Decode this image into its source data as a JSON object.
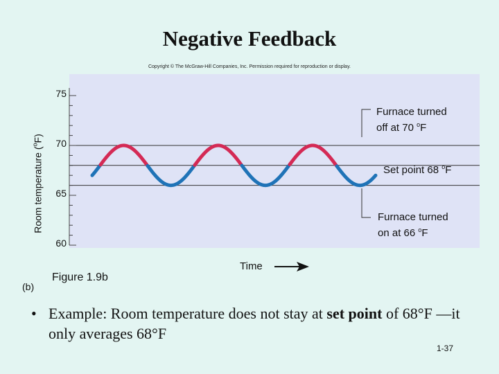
{
  "slide": {
    "title": "Negative Feedback",
    "copyright": "Copyright © The McGraw-Hill Companies, Inc. Permission required for reproduction or display.",
    "bullet_mark": "•",
    "bullet_pre": "Example: Room temperature does not stay at ",
    "bullet_bold": "set point",
    "bullet_post": " of 68°F —it only averages 68°F",
    "page_number": "1-37"
  },
  "chart_data": {
    "type": "line",
    "panel_label": "(b)",
    "figure_label": "Figure 1.9b",
    "ylabel_main": "Room temperature (",
    "ylabel_sup": "o",
    "ylabel_end": "F)",
    "xlabel": "Time",
    "ylim": [
      60,
      75
    ],
    "yticks": [
      "75",
      "70",
      "65",
      "60"
    ],
    "set_point": 68,
    "upper_limit": 70,
    "lower_limit": 66,
    "wave": {
      "mean": 68,
      "amplitude": 2,
      "peaks": 3,
      "troughs": 3,
      "heating_color": "#d42a55",
      "cooling_color": "#1f73b7"
    },
    "reference_lines": [
      {
        "label_line1": "Furnace turned",
        "label_line2": "off at 70 ",
        "sup": "o",
        "unit": "F",
        "value": 70
      },
      {
        "label_line1": "Set point 68 ",
        "sup": "o",
        "unit": "F",
        "value": 68
      },
      {
        "label_line1": "Furnace turned",
        "label_line2": "on at 66 ",
        "sup": "o",
        "unit": "F",
        "value": 66
      }
    ],
    "colors": {
      "plot_background": "#dfe3f6",
      "reference_line": "#333333"
    }
  }
}
